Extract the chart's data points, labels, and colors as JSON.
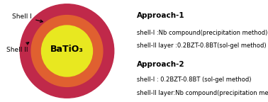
{
  "fig_width": 3.78,
  "fig_height": 1.44,
  "dpi": 100,
  "background_color": "#ffffff",
  "shell2_color": "#c0294a",
  "shell1_color": "#e06030",
  "core_color": "#e8e820",
  "core_label": "BaTiO₃",
  "core_label_fontsize": 9,
  "shell1_label": "Shell I",
  "shell2_label": "Shell II",
  "shell_label_fontsize": 6.5,
  "approach1_title": "Approach-1",
  "approach1_line1": "shell-I :Nb compound(precipitation method)",
  "approach1_line2": "shell-II layer :0.2BZT-0.8BT(sol-gel method)",
  "approach2_title": "Approach-2",
  "approach2_line1": "shell-I : 0.2BZT-0.8BT (sol-gel method)",
  "approach2_line2": "shell-II layer:Nb compound(precipitation method)",
  "title_fontsize": 7.5,
  "body_fontsize": 6.0
}
